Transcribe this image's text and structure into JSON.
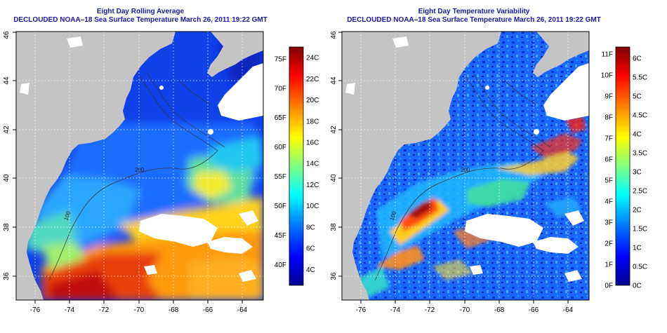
{
  "colors": {
    "land": "#c4c4c4",
    "cloud": "#ffffff",
    "title": "#1a1aa8",
    "grid": "#ffffff",
    "contour": "#333333",
    "colormap": [
      "#00008f",
      "#0000ff",
      "#0080ff",
      "#00ffff",
      "#80ff80",
      "#ffff00",
      "#ff8000",
      "#ff0000",
      "#800000"
    ]
  },
  "panels": [
    {
      "id": "sst-average",
      "title": "Eight Day Rolling Average",
      "subtitle": "DECLOUDED NOAA–18 Sea Surface Temperature March 26, 2011 19:22 GMT",
      "x_ticks": [
        "-76",
        "-74",
        "-72",
        "-70",
        "-68",
        "-66",
        "-64"
      ],
      "y_ticks": [
        "36",
        "38",
        "40",
        "42",
        "44",
        "46"
      ],
      "colorbar": {
        "left_labels": [
          "40F",
          "45F",
          "50F",
          "55F",
          "60F",
          "65F",
          "70F",
          "75F"
        ],
        "right_labels": [
          "4C",
          "6C",
          "8C",
          "10C",
          "12C",
          "14C",
          "16C",
          "18C",
          "20C",
          "22C",
          "24C"
        ],
        "range_c": [
          2.5,
          25
        ],
        "range_f": [
          36.5,
          77
        ]
      },
      "contour_labels": [
        "100",
        "200"
      ]
    },
    {
      "id": "sst-variability",
      "title": "Eight Day Temperature Variability",
      "subtitle": "DECLOUDED NOAA–18 Sea Surface Temperature March 26, 2011 19:22 GMT",
      "x_ticks": [
        "-76",
        "-74",
        "-72",
        "-70",
        "-68",
        "-66",
        "-64"
      ],
      "y_ticks": [
        "36",
        "38",
        "40",
        "42",
        "44",
        "46"
      ],
      "colorbar": {
        "left_labels": [
          "0F",
          "1F",
          "2F",
          "3F",
          "4F",
          "5F",
          "6F",
          "7F",
          "8F",
          "9F",
          "10F",
          "11F"
        ],
        "right_labels": [
          "0C",
          "0.5C",
          "1C",
          "1.5C",
          "2C",
          "2.5C",
          "3C",
          "3.5C",
          "4C",
          "4.5C",
          "5C",
          "5.5C",
          "6C"
        ],
        "range_c": [
          0,
          6.3
        ],
        "range_f": [
          0,
          11.34
        ]
      },
      "contour_labels": [
        "100",
        "200"
      ]
    }
  ]
}
